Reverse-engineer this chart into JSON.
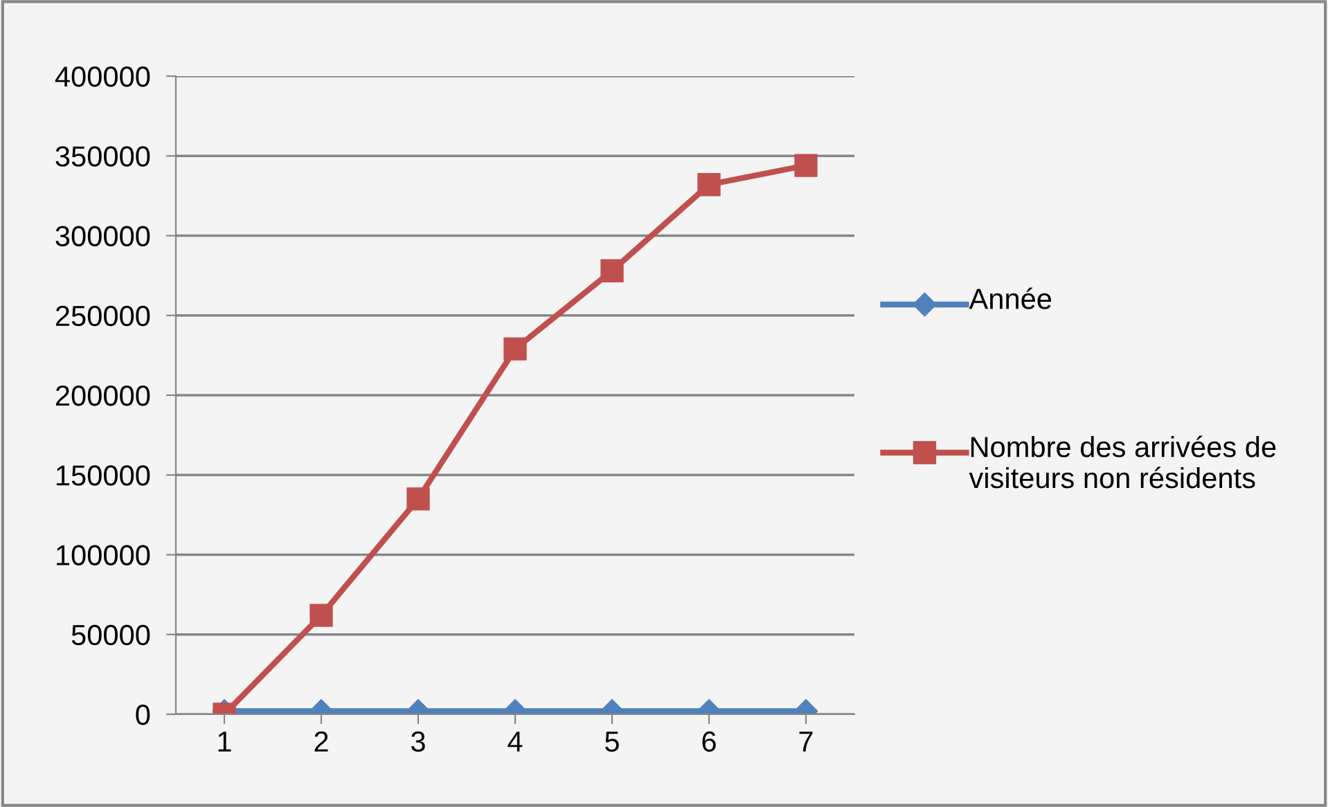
{
  "chart_data": {
    "type": "line",
    "categories": [
      "1",
      "2",
      "3",
      "4",
      "5",
      "6",
      "7"
    ],
    "series": [
      {
        "name": "Année",
        "color": "#4f81bd",
        "marker": "diamond",
        "values": [
          2000,
          2000,
          2000,
          2000,
          2000,
          2000,
          2000
        ]
      },
      {
        "name": "Nombre des arrivées de visiteurs non résidents",
        "color": "#c0504d",
        "marker": "square",
        "values": [
          0,
          62000,
          135000,
          229000,
          278000,
          332000,
          344000
        ]
      }
    ],
    "ylim": [
      0,
      400000
    ],
    "yticks": [
      0,
      50000,
      100000,
      150000,
      200000,
      250000,
      300000,
      350000,
      400000
    ],
    "grid": "y",
    "legend": "right",
    "line_style": "solid"
  }
}
